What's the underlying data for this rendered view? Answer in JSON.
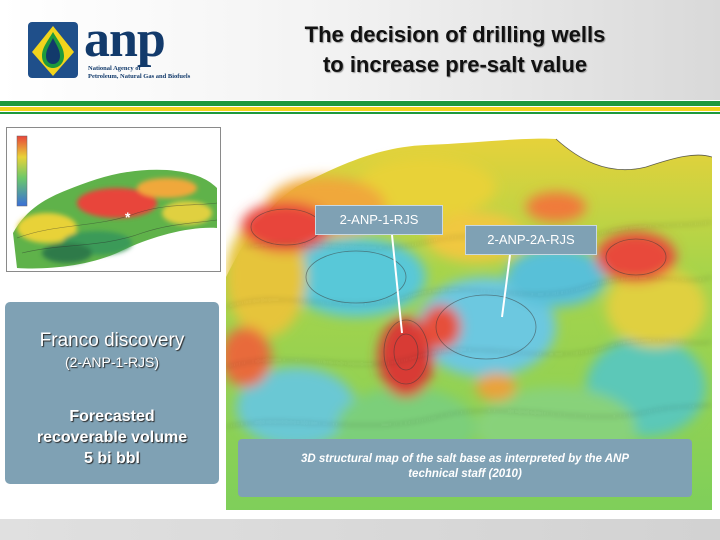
{
  "header": {
    "logo_text": "anp",
    "logo_subtitle_lines": [
      "National Agency of",
      "Petroleum, Natural Gas and Biofuels"
    ],
    "title_lines": [
      "The decision of drilling wells",
      "to increase pre-salt value"
    ]
  },
  "main_map": {
    "wells": [
      {
        "label": "2-ANP-1-RJS"
      },
      {
        "label": "2-ANP-2A-RJS"
      }
    ],
    "caption_lines": [
      "3D structural map of the salt base as interpreted by the ANP",
      "technical staff (2010)"
    ]
  },
  "inset": {
    "marker": "*"
  },
  "panel": {
    "title": "Franco discovery",
    "subtitle": "(2-ANP-1-RJS)",
    "body_lines": [
      "Forecasted",
      "recoverable volume",
      "5 bi bbl"
    ]
  },
  "colors": {
    "brand_navy": "#123a6b",
    "stripe_green": "#1e9a3c",
    "stripe_yellow": "#f2d41c",
    "label_blue": "#7fa1b4"
  }
}
